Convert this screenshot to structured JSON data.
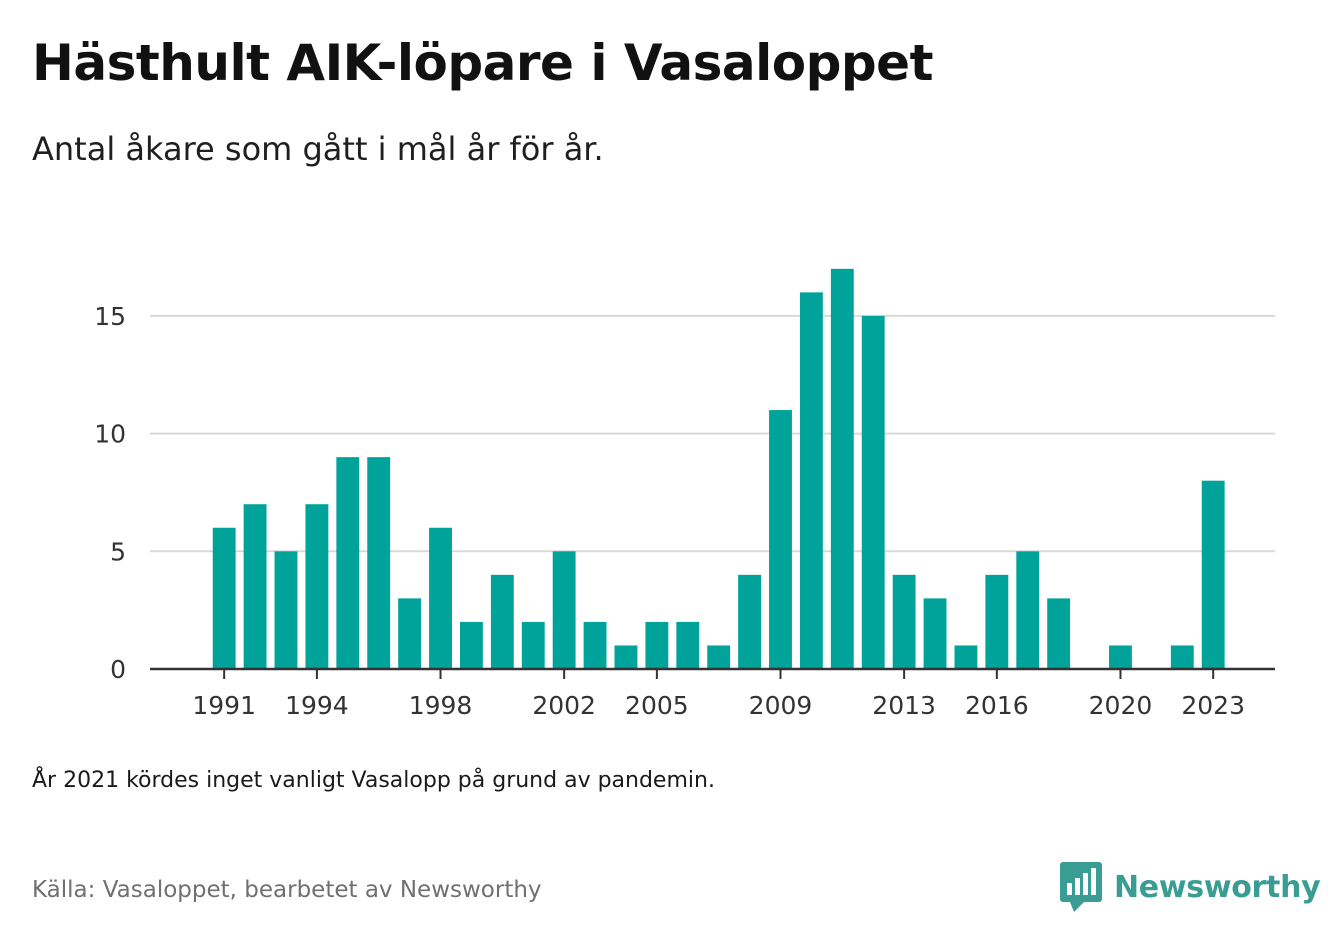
{
  "header": {
    "title": "Hästhult AIK-löpare i Vasaloppet",
    "subtitle": "Antal åkare som gått i mål år för år."
  },
  "footer": {
    "note": "År 2021 kördes inget vanligt Vasalopp på grund av pandemin.",
    "source": "Källa: Vasaloppet, bearbetet av Newsworthy",
    "brand_name": "Newsworthy",
    "brand_icon": "newsworthy-logo-icon"
  },
  "colors": {
    "bar": "#00a39a",
    "brand": "#3a9d94",
    "grid": "#d9d9d9",
    "axis": "#333333"
  },
  "chart_data": {
    "type": "bar",
    "title": "Hästhult AIK-löpare i Vasaloppet",
    "subtitle": "Antal åkare som gått i mål år för år.",
    "xlabel": "",
    "ylabel": "",
    "x": [
      1991,
      1992,
      1993,
      1994,
      1995,
      1996,
      1997,
      1998,
      1999,
      2000,
      2001,
      2002,
      2003,
      2004,
      2005,
      2006,
      2007,
      2008,
      2009,
      2010,
      2011,
      2012,
      2013,
      2014,
      2015,
      2016,
      2017,
      2018,
      2019,
      2020,
      2021,
      2022,
      2023
    ],
    "values": [
      6,
      7,
      5,
      7,
      9,
      9,
      3,
      6,
      2,
      4,
      2,
      5,
      2,
      1,
      2,
      2,
      1,
      4,
      11,
      16,
      17,
      15,
      4,
      3,
      1,
      4,
      5,
      3,
      0,
      1,
      0,
      1,
      8
    ],
    "x_ticks": [
      1991,
      1994,
      1998,
      2002,
      2005,
      2009,
      2013,
      2016,
      2020,
      2023
    ],
    "y_ticks": [
      0,
      5,
      10,
      15
    ],
    "ylim": [
      0,
      17.8
    ],
    "grid": true,
    "legend": "none"
  }
}
